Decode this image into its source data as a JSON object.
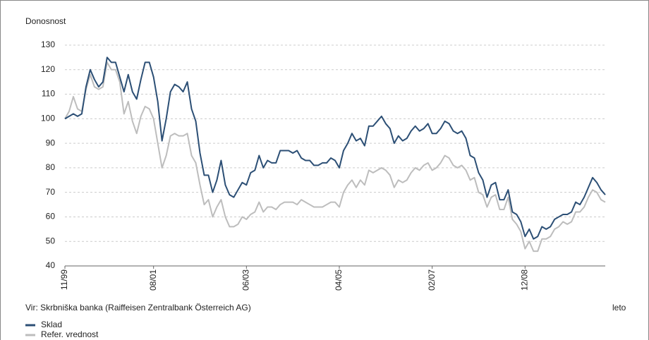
{
  "chart_data": {
    "type": "line",
    "y_label": "Donosnost",
    "x_label": "leto",
    "source": "Vir: Skrbniška banka (Raiffeisen Zentralbank Österreich AG)",
    "categories": [
      "11/99",
      null,
      null,
      null,
      null,
      null,
      null,
      null,
      null,
      null,
      null,
      null,
      null,
      null,
      null,
      null,
      null,
      null,
      null,
      null,
      null,
      "08/01",
      null,
      null,
      null,
      null,
      null,
      null,
      null,
      null,
      null,
      null,
      null,
      null,
      null,
      null,
      null,
      null,
      null,
      null,
      null,
      null,
      null,
      "06/03",
      null,
      null,
      null,
      null,
      null,
      null,
      null,
      null,
      null,
      null,
      null,
      null,
      null,
      null,
      null,
      null,
      null,
      null,
      null,
      null,
      null,
      "04/05",
      null,
      null,
      null,
      null,
      null,
      null,
      null,
      null,
      null,
      null,
      null,
      null,
      null,
      null,
      null,
      null,
      null,
      null,
      null,
      null,
      null,
      "02/07",
      null,
      null,
      null,
      null,
      null,
      null,
      null,
      null,
      null,
      null,
      null,
      null,
      null,
      null,
      null,
      null,
      null,
      null,
      null,
      null,
      null,
      "12/08",
      null,
      null,
      null,
      null,
      null,
      null,
      null,
      null,
      null,
      null,
      null,
      null,
      null,
      null,
      null,
      null,
      null,
      null,
      null
    ],
    "series": [
      {
        "name": "Sklad",
        "color": "#2c4f75",
        "values": [
          100,
          101,
          102,
          101,
          102,
          113,
          120,
          116,
          113,
          115,
          125,
          123,
          123,
          117,
          111,
          118,
          111,
          108,
          116,
          123,
          123,
          117,
          107,
          91,
          100,
          111,
          114,
          113,
          111,
          115,
          104,
          99,
          86,
          77,
          77,
          70,
          75,
          83,
          73,
          69,
          68,
          71,
          74,
          73,
          78,
          79,
          85,
          80,
          83,
          82,
          82,
          87,
          87,
          87,
          86,
          87,
          84,
          83,
          83,
          81,
          81,
          82,
          82,
          84,
          83,
          80,
          87,
          90,
          94,
          91,
          92,
          89,
          97,
          97,
          99,
          101,
          98,
          96,
          90,
          93,
          91,
          92,
          95,
          97,
          95,
          96,
          98,
          94,
          94,
          96,
          99,
          98,
          95,
          94,
          95,
          92,
          85,
          84,
          78,
          75,
          68,
          73,
          74,
          67,
          67,
          71,
          62,
          61,
          58,
          52,
          55,
          51,
          52,
          56,
          55,
          56,
          59,
          60,
          61,
          61,
          62,
          66,
          65,
          68,
          72,
          76,
          74,
          71,
          69
        ]
      },
      {
        "name": "Refer. vrednost",
        "color": "#bdbdbd",
        "values": [
          100,
          103,
          109,
          104,
          103,
          112,
          118,
          113,
          112,
          113,
          123,
          120,
          120,
          115,
          102,
          107,
          99,
          94,
          101,
          105,
          104,
          100,
          90,
          80,
          85,
          93,
          94,
          93,
          93,
          94,
          85,
          82,
          73,
          65,
          67,
          60,
          64,
          67,
          60,
          56,
          56,
          57,
          60,
          59,
          61,
          62,
          66,
          62,
          64,
          64,
          63,
          65,
          66,
          66,
          66,
          65,
          67,
          66,
          65,
          64,
          64,
          64,
          65,
          66,
          66,
          64,
          70,
          73,
          75,
          72,
          75,
          73,
          79,
          78,
          79,
          80,
          79,
          77,
          72,
          75,
          74,
          75,
          78,
          80,
          79,
          81,
          82,
          79,
          80,
          82,
          85,
          84,
          81,
          80,
          81,
          79,
          75,
          76,
          70,
          69,
          64,
          68,
          69,
          63,
          63,
          68,
          59,
          57,
          54,
          47,
          50,
          46,
          46,
          51,
          51,
          52,
          55,
          56,
          58,
          57,
          58,
          62,
          62,
          64,
          68,
          71,
          70,
          67,
          66
        ]
      }
    ],
    "ylim": [
      40,
      130
    ],
    "yticks": [
      40,
      50,
      60,
      70,
      80,
      90,
      100,
      110,
      120,
      130
    ],
    "grid": true
  }
}
